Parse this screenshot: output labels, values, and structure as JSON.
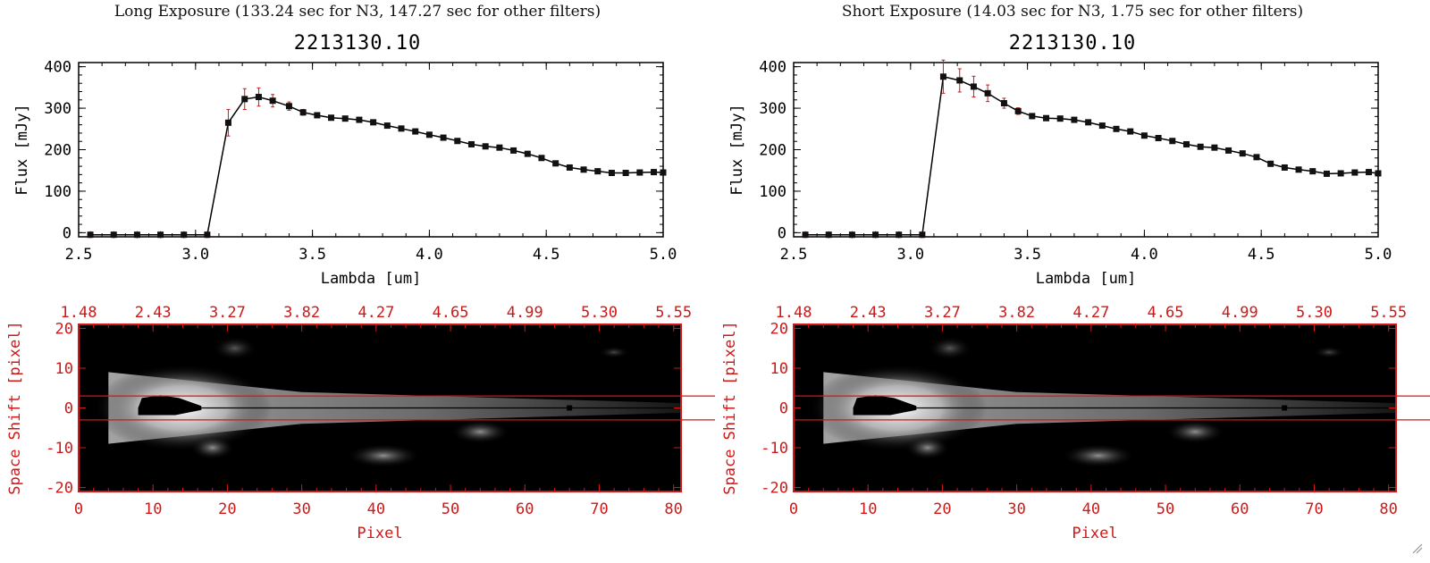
{
  "colors": {
    "accent_red": "#d01818",
    "frame": "#000000",
    "marker": "#111111"
  },
  "panels": [
    {
      "heading": "Long Exposure (133.24 sec for N3, 147.27 sec for other filters)",
      "title": "2213130.10",
      "spectrum": {
        "xlabel": "Lambda [um]",
        "ylabel": "Flux [mJy]",
        "xticks": [
          "2.5",
          "3.0",
          "3.5",
          "4.0",
          "4.5",
          "5.0"
        ],
        "yticks": [
          "0",
          "100",
          "200",
          "300",
          "400"
        ]
      },
      "image": {
        "xlabel": "Pixel",
        "ylabel": "Space Shift [pixel]",
        "xticks": [
          "0",
          "10",
          "20",
          "30",
          "40",
          "50",
          "60",
          "70",
          "80"
        ],
        "yticks": [
          "20",
          "10",
          "0",
          "-10",
          "-20"
        ],
        "top_ticks": [
          "1.48",
          "2.43",
          "3.27",
          "3.82",
          "4.27",
          "4.65",
          "4.99",
          "5.30",
          "5.55"
        ]
      }
    },
    {
      "heading": "Short Exposure (14.03 sec for N3, 1.75 sec for other filters)",
      "title": "2213130.10",
      "spectrum": {
        "xlabel": "Lambda [um]",
        "ylabel": "Flux [mJy]",
        "xticks": [
          "2.5",
          "3.0",
          "3.5",
          "4.0",
          "4.5",
          "5.0"
        ],
        "yticks": [
          "0",
          "100",
          "200",
          "300",
          "400"
        ]
      },
      "image": {
        "xlabel": "Pixel",
        "ylabel": "Space Shift [pixel]",
        "xticks": [
          "0",
          "10",
          "20",
          "30",
          "40",
          "50",
          "60",
          "70",
          "80"
        ],
        "yticks": [
          "20",
          "10",
          "0",
          "-10",
          "-20"
        ],
        "top_ticks": [
          "1.48",
          "2.43",
          "3.27",
          "3.82",
          "4.27",
          "4.65",
          "4.99",
          "5.30",
          "5.55"
        ]
      }
    }
  ],
  "chart_data": [
    {
      "type": "line",
      "title": "2213130.10",
      "xlabel": "Lambda [um]",
      "ylabel": "Flux [mJy]",
      "xlim": [
        2.5,
        5.0
      ],
      "ylim": [
        -10,
        410
      ],
      "x": [
        2.55,
        2.65,
        2.75,
        2.85,
        2.95,
        3.05,
        3.14,
        3.21,
        3.27,
        3.33,
        3.4,
        3.46,
        3.52,
        3.58,
        3.64,
        3.7,
        3.76,
        3.82,
        3.88,
        3.94,
        4.0,
        4.06,
        4.12,
        4.18,
        4.24,
        4.3,
        4.36,
        4.42,
        4.48,
        4.54,
        4.6,
        4.66,
        4.72,
        4.78,
        4.84,
        4.9,
        4.96,
        5.0
      ],
      "y": [
        -5,
        -5,
        -5,
        -5,
        -5,
        -5,
        265,
        322,
        327,
        318,
        305,
        290,
        283,
        277,
        275,
        272,
        266,
        258,
        251,
        244,
        236,
        229,
        221,
        213,
        208,
        205,
        198,
        190,
        180,
        167,
        157,
        152,
        148,
        144,
        144,
        145,
        146,
        145
      ],
      "yerr": [
        0,
        0,
        0,
        0,
        0,
        0,
        32,
        25,
        22,
        15,
        10,
        7,
        6,
        5,
        5,
        5,
        5,
        5,
        5,
        5,
        5,
        5,
        5,
        5,
        5,
        5,
        5,
        5,
        5,
        5,
        5,
        5,
        5,
        5,
        5,
        5,
        5,
        5
      ]
    },
    {
      "type": "line",
      "title": "2213130.10",
      "xlabel": "Lambda [um]",
      "ylabel": "Flux [mJy]",
      "xlim": [
        2.5,
        5.0
      ],
      "ylim": [
        -10,
        410
      ],
      "x": [
        2.55,
        2.65,
        2.75,
        2.85,
        2.95,
        3.05,
        3.14,
        3.21,
        3.27,
        3.33,
        3.4,
        3.46,
        3.52,
        3.58,
        3.64,
        3.7,
        3.76,
        3.82,
        3.88,
        3.94,
        4.0,
        4.06,
        4.12,
        4.18,
        4.24,
        4.3,
        4.36,
        4.42,
        4.48,
        4.54,
        4.6,
        4.66,
        4.72,
        4.78,
        4.84,
        4.9,
        4.96,
        5.0
      ],
      "y": [
        -5,
        -5,
        -5,
        -5,
        -5,
        -5,
        376,
        367,
        352,
        336,
        312,
        293,
        281,
        276,
        275,
        272,
        266,
        258,
        250,
        244,
        234,
        228,
        221,
        213,
        207,
        205,
        198,
        191,
        182,
        166,
        157,
        152,
        148,
        142,
        143,
        145,
        146,
        143
      ],
      "yerr": [
        0,
        0,
        0,
        0,
        0,
        0,
        40,
        28,
        25,
        20,
        12,
        8,
        6,
        5,
        5,
        5,
        5,
        5,
        5,
        5,
        5,
        5,
        5,
        5,
        5,
        5,
        5,
        5,
        5,
        5,
        5,
        5,
        5,
        5,
        5,
        5,
        5,
        5
      ]
    }
  ]
}
